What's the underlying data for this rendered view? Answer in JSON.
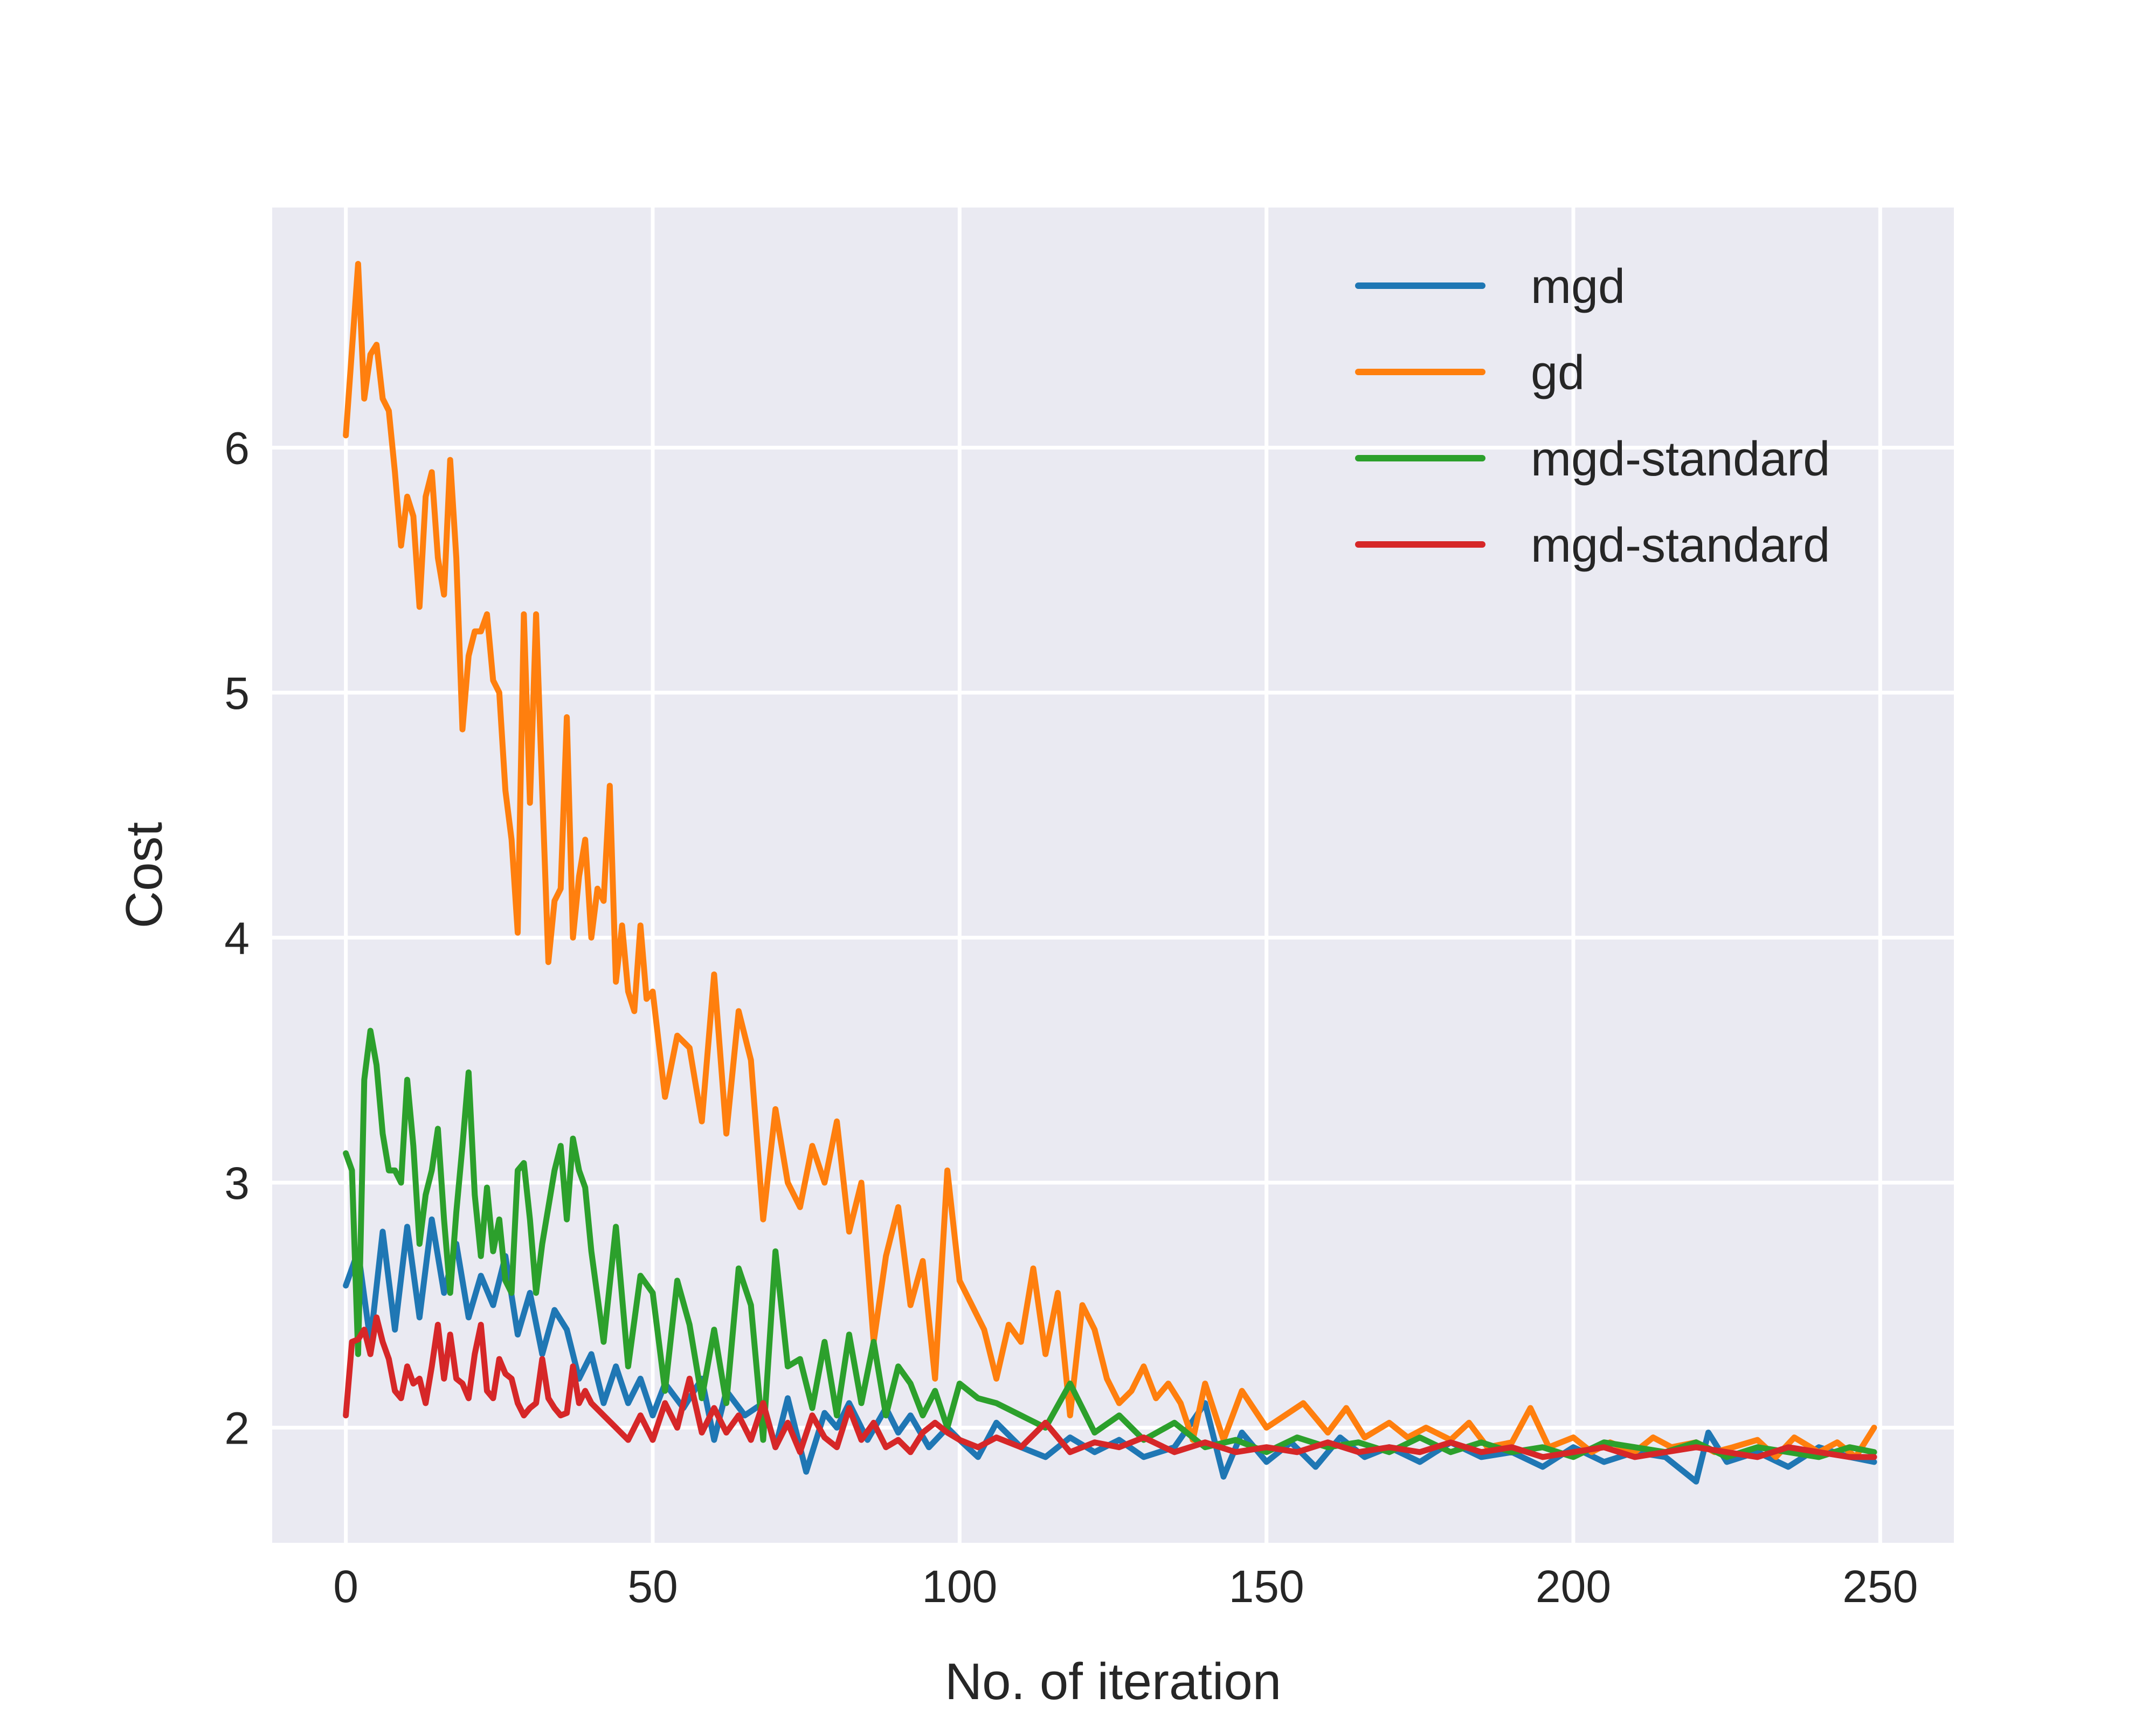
{
  "chart_data": {
    "type": "line",
    "title": "",
    "xlabel": "No. of iteration",
    "ylabel": "Cost",
    "xlim": [
      -12,
      262
    ],
    "ylim": [
      1.53,
      6.98
    ],
    "xticks": [
      0,
      50,
      100,
      150,
      200,
      250
    ],
    "yticks": [
      2,
      3,
      4,
      5,
      6
    ],
    "grid": true,
    "legend_position": "top-right",
    "background": "#eaeaf2",
    "series": [
      {
        "name": "mgd",
        "color": "#1f77b4",
        "x": [
          0,
          2,
          4,
          6,
          8,
          10,
          12,
          14,
          16,
          18,
          20,
          22,
          24,
          26,
          28,
          30,
          32,
          34,
          36,
          38,
          40,
          42,
          44,
          46,
          48,
          50,
          52,
          55,
          58,
          60,
          62,
          65,
          68,
          70,
          72,
          75,
          78,
          80,
          82,
          85,
          88,
          90,
          92,
          95,
          98,
          100,
          103,
          106,
          110,
          114,
          118,
          122,
          126,
          130,
          135,
          140,
          143,
          146,
          150,
          154,
          158,
          162,
          166,
          170,
          175,
          180,
          185,
          190,
          195,
          200,
          205,
          210,
          215,
          220,
          222,
          225,
          230,
          235,
          240,
          245,
          249
        ],
        "y": [
          2.58,
          2.72,
          2.35,
          2.8,
          2.4,
          2.82,
          2.45,
          2.85,
          2.55,
          2.75,
          2.45,
          2.62,
          2.5,
          2.7,
          2.38,
          2.55,
          2.3,
          2.48,
          2.4,
          2.2,
          2.3,
          2.1,
          2.25,
          2.1,
          2.2,
          2.05,
          2.18,
          2.08,
          2.2,
          1.95,
          2.15,
          2.05,
          2.1,
          1.92,
          2.12,
          1.82,
          2.06,
          2.0,
          2.1,
          1.95,
          2.08,
          1.98,
          2.05,
          1.92,
          2.0,
          1.95,
          1.88,
          2.02,
          1.92,
          1.88,
          1.96,
          1.9,
          1.95,
          1.88,
          1.92,
          2.1,
          1.8,
          1.98,
          1.86,
          1.94,
          1.84,
          1.96,
          1.88,
          1.92,
          1.86,
          1.94,
          1.88,
          1.9,
          1.84,
          1.92,
          1.86,
          1.9,
          1.88,
          1.78,
          1.98,
          1.86,
          1.9,
          1.84,
          1.92,
          1.88,
          1.86
        ]
      },
      {
        "name": "gd",
        "color": "#ff7f0e",
        "x": [
          0,
          1,
          2,
          3,
          4,
          5,
          6,
          7,
          8,
          9,
          10,
          11,
          12,
          13,
          14,
          15,
          16,
          17,
          18,
          19,
          20,
          21,
          22,
          23,
          24,
          25,
          26,
          27,
          28,
          29,
          30,
          31,
          32,
          33,
          34,
          35,
          36,
          37,
          38,
          39,
          40,
          41,
          42,
          43,
          44,
          45,
          46,
          47,
          48,
          49,
          50,
          52,
          54,
          56,
          58,
          60,
          62,
          64,
          66,
          68,
          70,
          72,
          74,
          76,
          78,
          80,
          82,
          84,
          86,
          88,
          90,
          92,
          94,
          96,
          98,
          100,
          102,
          104,
          106,
          108,
          110,
          112,
          114,
          116,
          118,
          120,
          122,
          124,
          126,
          128,
          130,
          132,
          134,
          136,
          138,
          140,
          143,
          146,
          150,
          153,
          156,
          160,
          163,
          166,
          170,
          173,
          176,
          180,
          183,
          186,
          190,
          193,
          196,
          200,
          203,
          206,
          210,
          213,
          216,
          220,
          223,
          226,
          230,
          233,
          236,
          240,
          243,
          246,
          249
        ],
        "y": [
          6.05,
          6.4,
          6.75,
          6.2,
          6.38,
          6.42,
          6.2,
          6.15,
          5.9,
          5.6,
          5.8,
          5.72,
          5.35,
          5.8,
          5.9,
          5.55,
          5.4,
          5.95,
          5.55,
          4.85,
          5.15,
          5.25,
          5.25,
          5.32,
          5.05,
          5.0,
          4.6,
          4.4,
          4.02,
          5.32,
          4.55,
          5.32,
          4.6,
          3.9,
          4.15,
          4.2,
          4.9,
          4.0,
          4.25,
          4.4,
          4.0,
          4.2,
          4.15,
          4.62,
          3.82,
          4.05,
          3.78,
          3.7,
          4.05,
          3.75,
          3.78,
          3.35,
          3.6,
          3.55,
          3.25,
          3.85,
          3.2,
          3.7,
          3.5,
          2.85,
          3.3,
          3.0,
          2.9,
          3.15,
          3.0,
          3.25,
          2.8,
          3.0,
          2.35,
          2.7,
          2.9,
          2.5,
          2.68,
          2.2,
          3.05,
          2.6,
          2.5,
          2.4,
          2.2,
          2.42,
          2.35,
          2.65,
          2.3,
          2.55,
          2.05,
          2.5,
          2.4,
          2.2,
          2.1,
          2.15,
          2.25,
          2.12,
          2.18,
          2.1,
          1.95,
          2.18,
          1.95,
          2.15,
          2.0,
          2.05,
          2.1,
          1.98,
          2.08,
          1.96,
          2.02,
          1.96,
          2.0,
          1.95,
          2.02,
          1.92,
          1.94,
          2.08,
          1.92,
          1.96,
          1.9,
          1.94,
          1.9,
          1.96,
          1.92,
          1.94,
          1.9,
          1.92,
          1.95,
          1.88,
          1.96,
          1.9,
          1.94,
          1.88,
          2.0
        ]
      },
      {
        "name": "mgd-standard",
        "color": "#2ca02c",
        "x": [
          0,
          1,
          2,
          3,
          4,
          5,
          6,
          7,
          8,
          9,
          10,
          11,
          12,
          13,
          14,
          15,
          16,
          17,
          18,
          19,
          20,
          21,
          22,
          23,
          24,
          25,
          26,
          27,
          28,
          29,
          30,
          31,
          32,
          33,
          34,
          35,
          36,
          37,
          38,
          39,
          40,
          42,
          44,
          46,
          48,
          50,
          52,
          54,
          56,
          58,
          60,
          62,
          64,
          66,
          68,
          70,
          72,
          74,
          76,
          78,
          80,
          82,
          84,
          86,
          88,
          90,
          92,
          94,
          96,
          98,
          100,
          103,
          106,
          110,
          114,
          118,
          122,
          126,
          130,
          135,
          140,
          145,
          150,
          155,
          160,
          165,
          170,
          175,
          180,
          185,
          190,
          195,
          200,
          205,
          210,
          215,
          220,
          225,
          230,
          235,
          240,
          245,
          249
        ],
        "y": [
          3.12,
          3.05,
          2.3,
          3.42,
          3.62,
          3.48,
          3.2,
          3.05,
          3.05,
          3.0,
          3.42,
          3.15,
          2.75,
          2.95,
          3.05,
          3.22,
          2.85,
          2.55,
          2.88,
          3.15,
          3.45,
          2.95,
          2.7,
          2.98,
          2.72,
          2.85,
          2.6,
          2.55,
          3.05,
          3.08,
          2.85,
          2.55,
          2.75,
          2.9,
          3.05,
          3.15,
          2.85,
          3.18,
          3.05,
          2.98,
          2.72,
          2.35,
          2.82,
          2.25,
          2.62,
          2.55,
          2.15,
          2.6,
          2.42,
          2.12,
          2.4,
          2.1,
          2.65,
          2.5,
          1.95,
          2.72,
          2.25,
          2.28,
          2.08,
          2.35,
          2.05,
          2.38,
          2.1,
          2.35,
          2.05,
          2.25,
          2.18,
          2.05,
          2.15,
          2.0,
          2.18,
          2.12,
          2.1,
          2.05,
          2.0,
          2.18,
          1.98,
          2.05,
          1.95,
          2.02,
          1.92,
          1.95,
          1.9,
          1.96,
          1.92,
          1.94,
          1.9,
          1.96,
          1.9,
          1.94,
          1.9,
          1.92,
          1.88,
          1.94,
          1.92,
          1.9,
          1.94,
          1.88,
          1.92,
          1.9,
          1.88,
          1.92,
          1.9
        ]
      },
      {
        "name": "mgd-standard",
        "color": "#d62728",
        "x": [
          0,
          1,
          2,
          3,
          4,
          5,
          6,
          7,
          8,
          9,
          10,
          11,
          12,
          13,
          14,
          15,
          16,
          17,
          18,
          19,
          20,
          21,
          22,
          23,
          24,
          25,
          26,
          27,
          28,
          29,
          30,
          31,
          32,
          33,
          34,
          35,
          36,
          37,
          38,
          39,
          40,
          42,
          44,
          46,
          48,
          50,
          52,
          54,
          56,
          58,
          60,
          62,
          64,
          66,
          68,
          70,
          72,
          74,
          76,
          78,
          80,
          82,
          84,
          86,
          88,
          90,
          92,
          94,
          96,
          98,
          100,
          103,
          106,
          110,
          114,
          118,
          122,
          126,
          130,
          135,
          140,
          145,
          150,
          155,
          160,
          165,
          170,
          175,
          180,
          185,
          190,
          195,
          200,
          205,
          210,
          215,
          220,
          225,
          230,
          235,
          240,
          245,
          249
        ],
        "y": [
          2.05,
          2.35,
          2.36,
          2.4,
          2.3,
          2.45,
          2.35,
          2.28,
          2.15,
          2.12,
          2.25,
          2.18,
          2.2,
          2.1,
          2.25,
          2.42,
          2.2,
          2.38,
          2.2,
          2.18,
          2.12,
          2.3,
          2.42,
          2.15,
          2.12,
          2.28,
          2.22,
          2.2,
          2.1,
          2.05,
          2.08,
          2.1,
          2.28,
          2.12,
          2.08,
          2.05,
          2.06,
          2.25,
          2.1,
          2.15,
          2.1,
          2.05,
          2.0,
          1.95,
          2.05,
          1.95,
          2.1,
          2.0,
          2.2,
          1.98,
          2.08,
          1.98,
          2.05,
          1.95,
          2.1,
          1.92,
          2.02,
          1.9,
          2.05,
          1.96,
          1.92,
          2.08,
          1.95,
          2.02,
          1.92,
          1.95,
          1.9,
          1.98,
          2.02,
          1.98,
          1.95,
          1.92,
          1.96,
          1.92,
          2.02,
          1.9,
          1.94,
          1.92,
          1.96,
          1.9,
          1.94,
          1.9,
          1.92,
          1.9,
          1.94,
          1.9,
          1.92,
          1.9,
          1.94,
          1.9,
          1.92,
          1.88,
          1.9,
          1.92,
          1.88,
          1.9,
          1.92,
          1.9,
          1.88,
          1.92,
          1.9,
          1.88,
          1.88
        ]
      }
    ]
  }
}
